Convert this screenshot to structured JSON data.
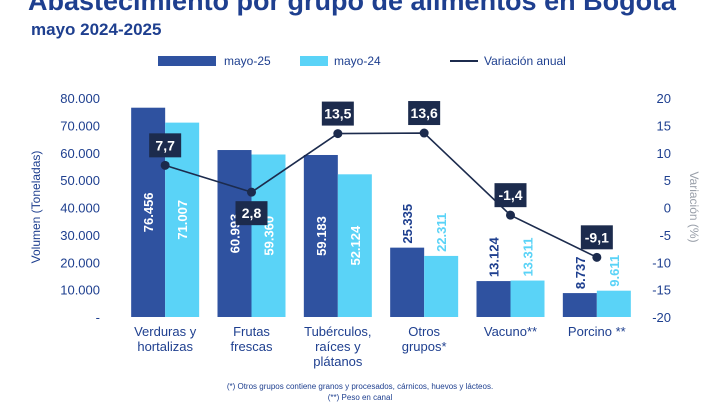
{
  "header": {
    "title": "Abastecimiento por grupo de alimentos en Bogotá",
    "subtitle": "mayo 2024-2025"
  },
  "notes": [
    "(*) Otros grupos contiene granos y procesados, cárnicos, huevos y lácteos.",
    "(**) Peso en canal"
  ],
  "colors": {
    "series_2025": "#2f52a0",
    "series_2024": "#5ad3f7",
    "line": "#1c2b4d",
    "label_box": "#1c2b4d",
    "axis_text": "#1e3f8f",
    "right_axis_text": "#9aa0aa"
  },
  "chart_data": {
    "type": "bar",
    "categories": [
      [
        "Verduras y",
        "hortalizas"
      ],
      [
        "Frutas",
        "frescas"
      ],
      [
        "Tubérculos,",
        "raíces y",
        "plátanos"
      ],
      [
        "Otros",
        "grupos*"
      ],
      [
        "Vacuno**"
      ],
      [
        "Porcino **"
      ]
    ],
    "series": [
      {
        "name": "mayo-25",
        "values": [
          76456,
          60993,
          59183,
          25335,
          13124,
          8737
        ],
        "labels": [
          "76.456",
          "60.993",
          "59.183",
          "25.335",
          "13.124",
          "8.737"
        ]
      },
      {
        "name": "mayo-24",
        "values": [
          71007,
          59360,
          52124,
          22311,
          13311,
          9611
        ],
        "labels": [
          "71.007",
          "59.360",
          "52.124",
          "22.311",
          "13.311",
          "9.611"
        ]
      }
    ],
    "line_series": {
      "name": "Variación anual",
      "values": [
        7.7,
        2.8,
        13.5,
        13.6,
        -1.4,
        -9.1
      ],
      "labels": [
        "7,7",
        "2,8",
        "13,5",
        "13,6",
        "-1,4",
        "-9,1"
      ]
    },
    "ylabel": "Volumen (Toneladas)",
    "y2label": "Variación (%)",
    "ylim": [
      0,
      80000
    ],
    "y2lim": [
      -20,
      20
    ],
    "yticks": [
      "-",
      "10.000",
      "20.000",
      "30.000",
      "40.000",
      "50.000",
      "60.000",
      "70.000",
      "80.000"
    ],
    "y2ticks": [
      "-20",
      "-15",
      "-10",
      "-5",
      "0",
      "5",
      "10",
      "15",
      "20"
    ],
    "legend_position": "top"
  }
}
